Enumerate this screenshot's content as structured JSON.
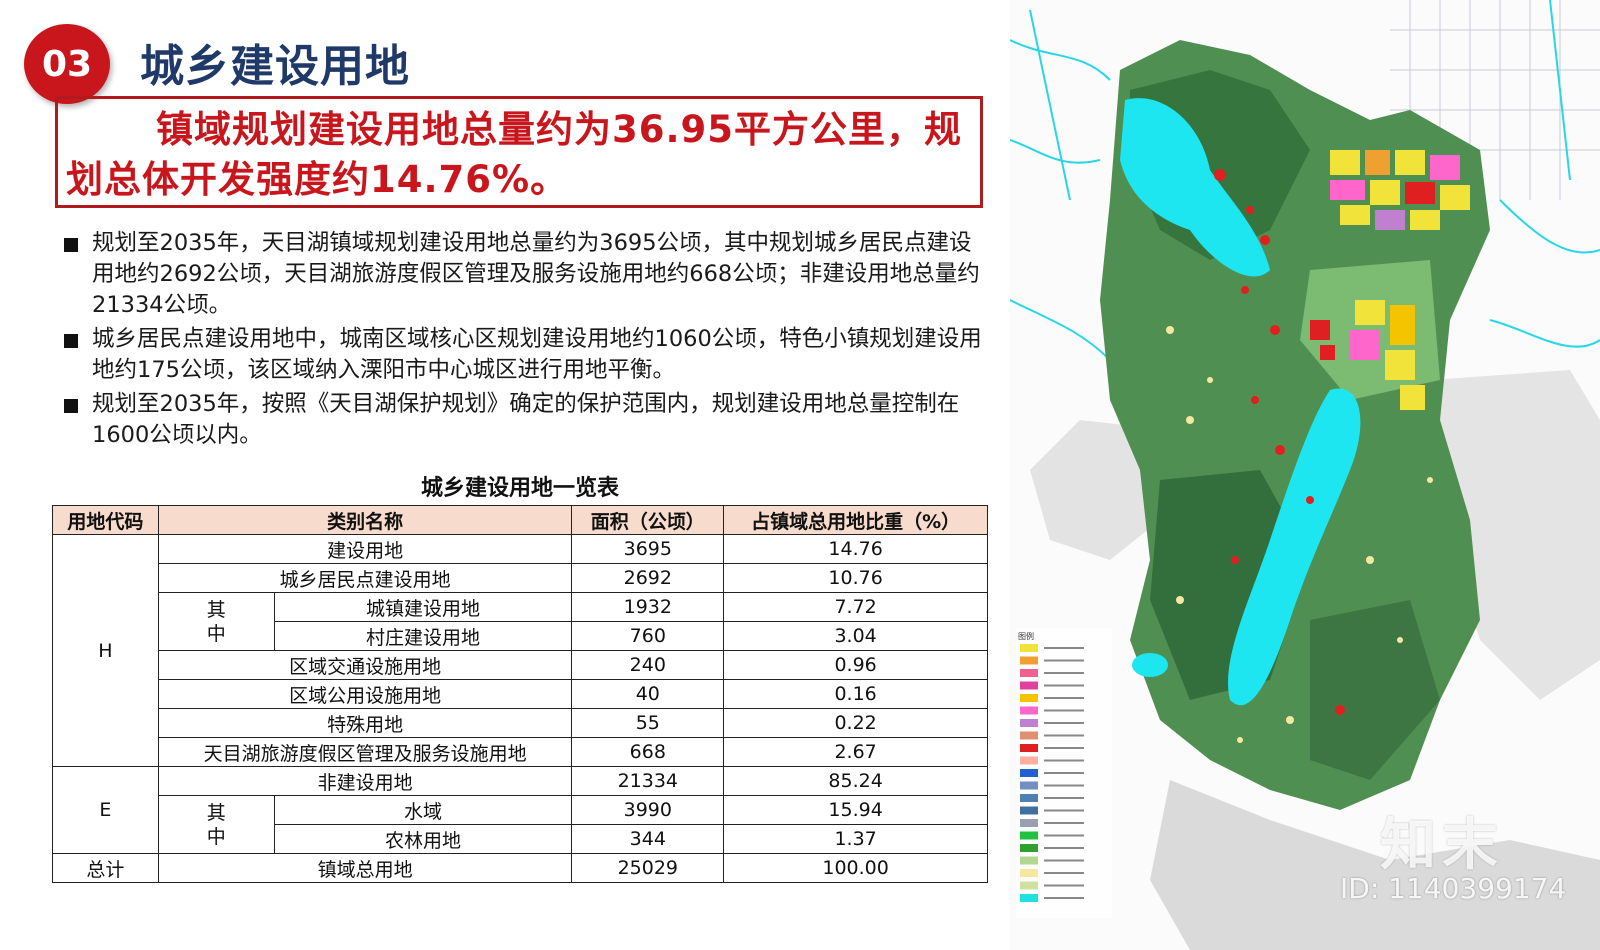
{
  "header": {
    "badge": "03",
    "title": "城乡建设用地",
    "headline": "镇域规划建设用地总量约为36.95平方公里，规划总体开发强度约14.76%。"
  },
  "bullets": [
    "规划至2035年，天目湖镇域规划建设用地总量约为3695公顷，其中规划城乡居民点建设用地约2692公顷，天目湖旅游度假区管理及服务设施用地约668公顷；非建设用地总量约21334公顷。",
    "城乡居民点建设用地中，城南区域核心区规划建设用地约1060公顷，特色小镇规划建设用地约175公顷，该区域纳入溧阳市中心城区进行用地平衡。",
    "规划至2035年，按照《天目湖保护规划》确定的保护范围内，规划建设用地总量控制在1600公顷以内。"
  ],
  "table": {
    "title": "城乡建设用地一览表",
    "headers": [
      "用地代码",
      "类别名称",
      "面积（公顷）",
      "占镇域总用地比重（%）"
    ],
    "code_h": "H",
    "code_e": "E",
    "code_total": "总计",
    "sub_h": "其中",
    "sub_e": "其中",
    "rows": [
      {
        "name": "建设用地",
        "area": "3695",
        "pct": "14.76"
      },
      {
        "name": "城乡居民点建设用地",
        "area": "2692",
        "pct": "10.76"
      },
      {
        "name": "城镇建设用地",
        "area": "1932",
        "pct": "7.72"
      },
      {
        "name": "村庄建设用地",
        "area": "760",
        "pct": "3.04"
      },
      {
        "name": "区域交通设施用地",
        "area": "240",
        "pct": "0.96"
      },
      {
        "name": "区域公用设施用地",
        "area": "40",
        "pct": "0.16"
      },
      {
        "name": "特殊用地",
        "area": "55",
        "pct": "0.22"
      },
      {
        "name": "天目湖旅游度假区管理及服务设施用地",
        "area": "668",
        "pct": "2.67"
      },
      {
        "name": "非建设用地",
        "area": "21334",
        "pct": "85.24"
      },
      {
        "name": "水域",
        "area": "3990",
        "pct": "15.94"
      },
      {
        "name": "农林用地",
        "area": "344",
        "pct": "1.37"
      },
      {
        "name": "镇域总用地",
        "area": "25029",
        "pct": "100.00"
      }
    ]
  },
  "map": {
    "legend_title": "图例",
    "legend_colors": [
      "#f2e33a",
      "#f0a030",
      "#f06090",
      "#e040a0",
      "#f5c400",
      "#ff66cc",
      "#c080d0",
      "#e09070",
      "#e02020",
      "#ffb0a0",
      "#2060d0",
      "#7090c0",
      "#5080b0",
      "#4070a0",
      "#9aa0b0",
      "#20c040",
      "#30a030",
      "#b0d890",
      "#f6e8a0",
      "#d0e0a0",
      "#20e0e0"
    ]
  },
  "watermark": {
    "brand": "知末",
    "id": "ID: 1140399174"
  }
}
